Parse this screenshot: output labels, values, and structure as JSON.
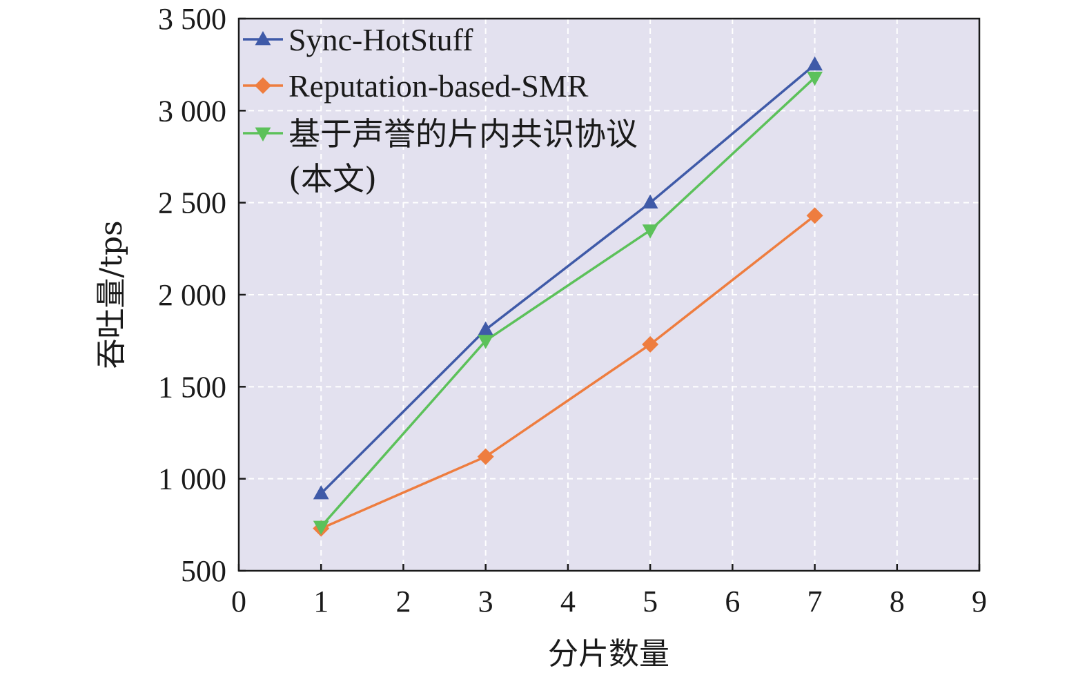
{
  "chart_data": {
    "type": "line",
    "xlabel": "分片数量",
    "ylabel": "吞吐量/tps",
    "xlim": [
      0,
      9
    ],
    "ylim": [
      500,
      3500
    ],
    "xticks": [
      0,
      1,
      2,
      3,
      4,
      5,
      6,
      7,
      8,
      9
    ],
    "yticks": [
      500,
      1000,
      1500,
      2000,
      2500,
      3000,
      3500
    ],
    "xtick_labels": [
      "0",
      "1",
      "2",
      "3",
      "4",
      "5",
      "6",
      "7",
      "8",
      "9"
    ],
    "ytick_labels": [
      "500",
      "1 000",
      "1 500",
      "2 000",
      "2 500",
      "3 000",
      "3 500"
    ],
    "grid": true,
    "background": "#e3e1ef",
    "legend_position": "top-left",
    "x": [
      1,
      3,
      5,
      7
    ],
    "series": [
      {
        "name": "Sync-HotStuff",
        "values": [
          920,
          1810,
          2500,
          3250
        ],
        "color": "#3f5aa8",
        "marker": "triangle-up"
      },
      {
        "name": "Reputation-based-SMR",
        "values": [
          730,
          1120,
          1730,
          2430
        ],
        "color": "#ee7d3f",
        "marker": "diamond"
      },
      {
        "name": "基于声誉的片内共识协议",
        "name_line2": "(本文)",
        "values": [
          740,
          1750,
          2350,
          3180
        ],
        "color": "#5cc15a",
        "marker": "triangle-down"
      }
    ]
  }
}
